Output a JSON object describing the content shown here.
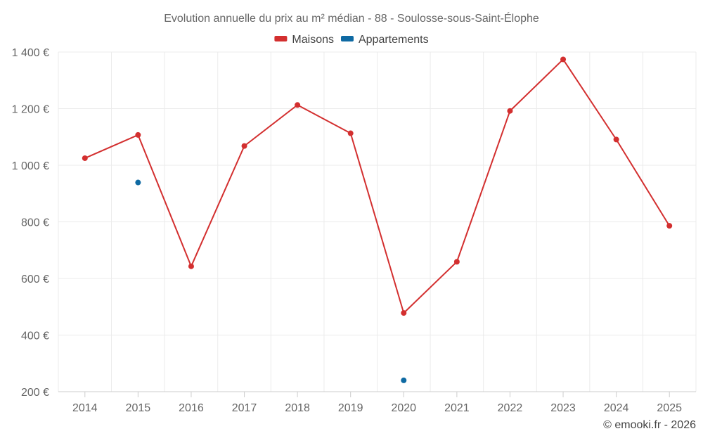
{
  "chart_data": {
    "type": "line",
    "title": "Evolution annuelle du prix au m² médian - 88 - Soulosse-sous-Saint-Élophe",
    "xlabel": "",
    "ylabel": "",
    "categories": [
      "2014",
      "2015",
      "2016",
      "2017",
      "2018",
      "2019",
      "2020",
      "2021",
      "2022",
      "2023",
      "2024",
      "2025"
    ],
    "ylim": [
      200,
      1400
    ],
    "yticks": [
      200,
      400,
      600,
      800,
      1000,
      1200,
      1400
    ],
    "ytick_labels": [
      "200 €",
      "400 €",
      "600 €",
      "800 €",
      "1 000 €",
      "1 200 €",
      "1 400 €"
    ],
    "grid": true,
    "legend_position": "top-center",
    "series": [
      {
        "name": "Maisons",
        "color": "#d32f2f",
        "line": true,
        "values": [
          1025,
          1107,
          643,
          1068,
          1213,
          1113,
          478,
          659,
          1192,
          1374,
          1091,
          786
        ]
      },
      {
        "name": "Appartements",
        "color": "#0f6aa3",
        "line": false,
        "values": [
          null,
          939,
          null,
          null,
          null,
          null,
          240,
          null,
          null,
          null,
          null,
          null
        ]
      }
    ]
  },
  "footer": {
    "credit": "© emooki.fr - 2026"
  },
  "colors": {
    "grid": "#ebebeb",
    "axis": "#cccccc",
    "text": "#666666"
  }
}
